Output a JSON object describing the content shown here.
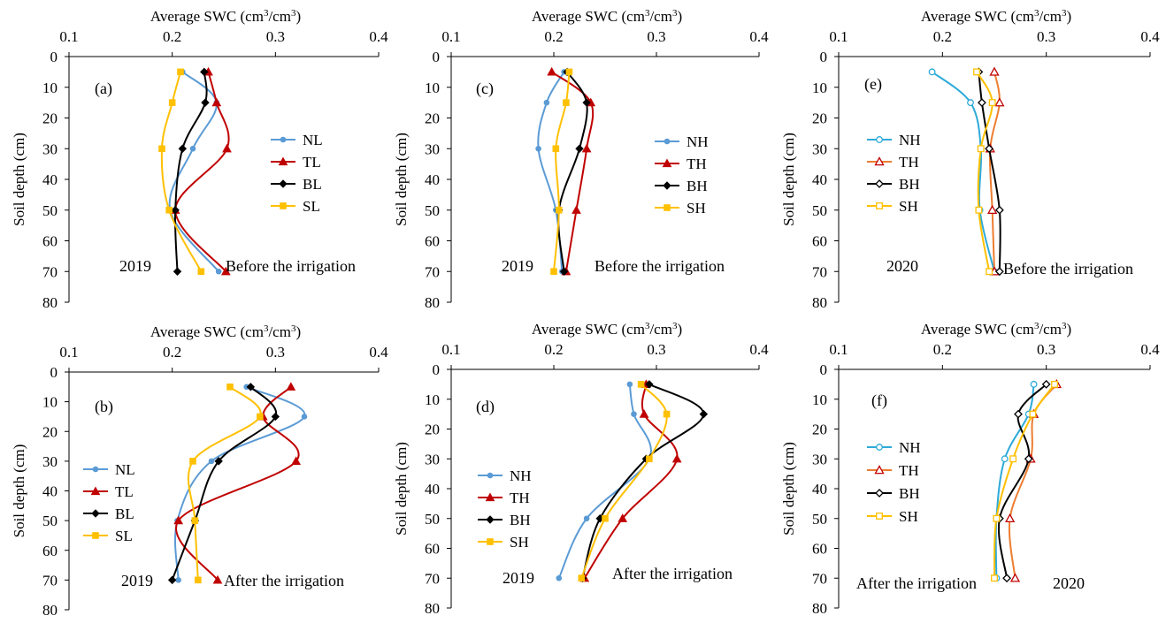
{
  "colors": {
    "N": "#5b9bd5",
    "T": "#c00000",
    "B": "#000000",
    "S": "#ffc000",
    "N2": "#2eaad9",
    "T2": "#ed7d31",
    "Tm2": "#c00000"
  },
  "chart_data": [
    {
      "id": "a",
      "type": "line",
      "panel_label": "(a)",
      "year": "2019",
      "note": "Before the  irrigation",
      "title": "Average  SWC (cm³/cm³)",
      "title_base": "Average  SWC (cm",
      "title_sup1": "3",
      "title_mid": "/cm",
      "title_sup2": "3",
      "title_end": ")",
      "ylabel": "Soil depth (cm)",
      "xlim": [
        0.1,
        0.4
      ],
      "xticks": [
        "0.1",
        "0.2",
        "0.3",
        "0.4"
      ],
      "ylim": [
        0,
        80
      ],
      "yticks": [
        "0",
        "10",
        "20",
        "30",
        "40",
        "50",
        "60",
        "70",
        "80"
      ],
      "depths": [
        5,
        15,
        30,
        50,
        70
      ],
      "series": [
        {
          "name": "NL",
          "values": [
            0.21,
            0.243,
            0.22,
            0.198,
            0.245
          ]
        },
        {
          "name": "TL",
          "values": [
            0.235,
            0.243,
            0.253,
            0.203,
            0.252
          ]
        },
        {
          "name": "BL",
          "values": [
            0.231,
            0.232,
            0.21,
            0.203,
            0.205
          ]
        },
        {
          "name": "SL",
          "values": [
            0.208,
            0.2,
            0.19,
            0.197,
            0.228
          ]
        }
      ]
    },
    {
      "id": "b",
      "type": "line",
      "panel_label": "(b)",
      "year": "2019",
      "note": "After the irrigation",
      "title": "Average  SWC (cm³/cm³)",
      "title_base": "Average  SWC (cm",
      "title_sup1": "3",
      "title_mid": "/cm",
      "title_sup2": "3",
      "title_end": ")",
      "ylabel": "Soil depth (cm)",
      "xlim": [
        0.1,
        0.4
      ],
      "xticks": [
        "0.1",
        "0.2",
        "0.3",
        "0.4"
      ],
      "ylim": [
        0,
        80
      ],
      "yticks": [
        "0",
        "10",
        "20",
        "30",
        "40",
        "50",
        "60",
        "70",
        "80"
      ],
      "depths": [
        5,
        15,
        30,
        50,
        70
      ],
      "series": [
        {
          "name": "NL",
          "values": [
            0.272,
            0.328,
            0.238,
            0.205,
            0.206
          ]
        },
        {
          "name": "TL",
          "values": [
            0.315,
            0.288,
            0.32,
            0.206,
            0.244
          ]
        },
        {
          "name": "BL",
          "values": [
            0.276,
            0.3,
            0.245,
            0.222,
            0.2
          ]
        },
        {
          "name": "SL",
          "values": [
            0.256,
            0.285,
            0.22,
            0.222,
            0.225
          ]
        }
      ]
    },
    {
      "id": "c",
      "type": "line",
      "panel_label": "(c)",
      "year": "2019",
      "note": "Before the irrigation",
      "title": "Average  SWC (cm³/cm³)",
      "title_base": "Average  SWC (cm",
      "title_sup1": "3",
      "title_mid": "/cm",
      "title_sup2": "3",
      "title_end": ")",
      "ylabel": "Soil depth (cm)",
      "xlim": [
        0.1,
        0.4
      ],
      "xticks": [
        "0.1",
        "0.2",
        "0.3",
        "0.4"
      ],
      "ylim": [
        0,
        80
      ],
      "yticks": [
        "0",
        "10",
        "20",
        "30",
        "40",
        "50",
        "60",
        "70",
        "80"
      ],
      "depths": [
        5,
        15,
        30,
        50,
        70
      ],
      "series": [
        {
          "name": "NH",
          "values": [
            0.21,
            0.193,
            0.185,
            0.202,
            0.208
          ]
        },
        {
          "name": "TH",
          "values": [
            0.198,
            0.236,
            0.232,
            0.222,
            0.212
          ]
        },
        {
          "name": "BH",
          "values": [
            0.213,
            0.232,
            0.225,
            0.205,
            0.21
          ]
        },
        {
          "name": "SH",
          "values": [
            0.215,
            0.212,
            0.202,
            0.205,
            0.2
          ]
        }
      ]
    },
    {
      "id": "d",
      "type": "line",
      "panel_label": "(d)",
      "year": "2019",
      "note": "After the irrigation",
      "title": "Average  SWC (cm³/cm³)",
      "title_base": "Average  SWC (cm",
      "title_sup1": "3",
      "title_mid": "/cm",
      "title_sup2": "3",
      "title_end": ")",
      "ylabel": "Soil depth (cm)",
      "xlim": [
        0.1,
        0.4
      ],
      "xticks": [
        "0.1",
        "0.2",
        "0.3",
        "0.4"
      ],
      "ylim": [
        0,
        80
      ],
      "yticks": [
        "0",
        "10",
        "20",
        "30",
        "40",
        "50",
        "60",
        "70",
        "80"
      ],
      "depths": [
        5,
        15,
        30,
        50,
        70
      ],
      "series": [
        {
          "name": "NH",
          "values": [
            0.274,
            0.278,
            0.293,
            0.232,
            0.205
          ]
        },
        {
          "name": "TH",
          "values": [
            0.29,
            0.288,
            0.32,
            0.267,
            0.23
          ]
        },
        {
          "name": "BH",
          "values": [
            0.293,
            0.346,
            0.29,
            0.245,
            0.228
          ]
        },
        {
          "name": "SH",
          "values": [
            0.285,
            0.31,
            0.293,
            0.25,
            0.227
          ]
        }
      ]
    },
    {
      "id": "e",
      "type": "line",
      "panel_label": "(e)",
      "year": "2020",
      "note": "Before the irrigation",
      "title": "Average  SWC (cm³/cm³)",
      "title_base": "Average  SWC (cm",
      "title_sup1": "3",
      "title_mid": "/cm",
      "title_sup2": "3",
      "title_end": ")",
      "ylabel": "Soil depth (cm)",
      "xlim": [
        0.1,
        0.4
      ],
      "xticks": [
        "0.1",
        "0.2",
        "0.3",
        "0.4"
      ],
      "ylim": [
        0,
        80
      ],
      "yticks": [
        "0",
        "10",
        "20",
        "30",
        "40",
        "50",
        "60",
        "70",
        "80"
      ],
      "depths": [
        5,
        15,
        30,
        50,
        70
      ],
      "series": [
        {
          "name": "NH",
          "values": [
            0.19,
            0.227,
            0.237,
            0.236,
            0.25
          ]
        },
        {
          "name": "TH",
          "values": [
            0.25,
            0.255,
            0.246,
            0.248,
            0.25
          ]
        },
        {
          "name": "BH",
          "values": [
            0.235,
            0.238,
            0.245,
            0.255,
            0.255
          ]
        },
        {
          "name": "SH",
          "values": [
            0.233,
            0.248,
            0.237,
            0.235,
            0.245
          ]
        }
      ]
    },
    {
      "id": "f",
      "type": "line",
      "panel_label": "(f)",
      "year": "2020",
      "note": "After the irrigation",
      "title": "Average  SWC (cm³/cm³)",
      "title_base": "Average  SWC (cm",
      "title_sup1": "3",
      "title_mid": "/cm",
      "title_sup2": "3",
      "title_end": ")",
      "ylabel": "Soil depth (cm)",
      "xlim": [
        0.1,
        0.4
      ],
      "xticks": [
        "0.1",
        "0.2",
        "0.3",
        "0.4"
      ],
      "ylim": [
        0,
        80
      ],
      "yticks": [
        "0",
        "10",
        "20",
        "30",
        "40",
        "50",
        "60",
        "70",
        "80"
      ],
      "depths": [
        5,
        15,
        30,
        50,
        70
      ],
      "series": [
        {
          "name": "NH",
          "values": [
            0.288,
            0.283,
            0.26,
            0.252,
            0.252
          ]
        },
        {
          "name": "TH",
          "values": [
            0.31,
            0.288,
            0.285,
            0.265,
            0.27
          ]
        },
        {
          "name": "BH",
          "values": [
            0.3,
            0.273,
            0.283,
            0.255,
            0.262
          ]
        },
        {
          "name": "SH",
          "values": [
            0.308,
            0.287,
            0.268,
            0.252,
            0.25
          ]
        }
      ]
    }
  ]
}
